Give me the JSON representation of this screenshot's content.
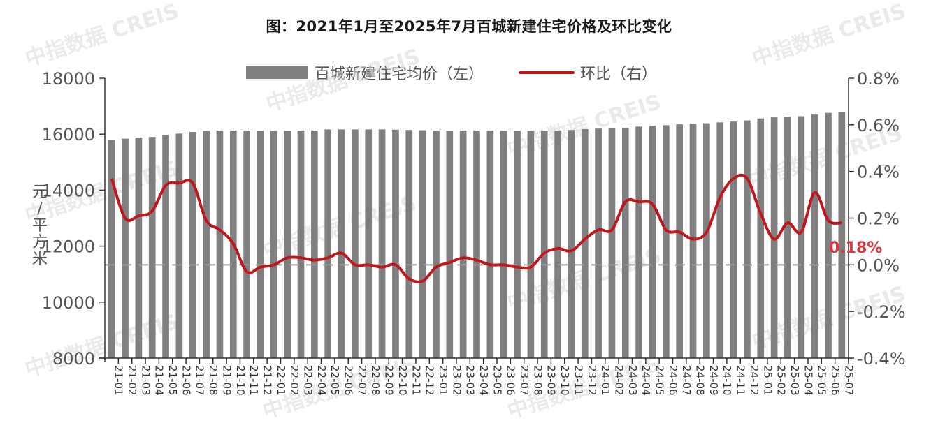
{
  "chart_data": {
    "type": "bar+line",
    "title": "图：2021年1月至2025年7月百城新建住宅价格及环比变化",
    "ylabel_left": "元/平方米",
    "ylabel_right": "",
    "xlabel": "",
    "ylim_left": [
      8000,
      18000
    ],
    "ylim_right": [
      -0.4,
      0.8
    ],
    "left_ticks": [
      "18000",
      "16000",
      "14000",
      "12000",
      "10000",
      "8000"
    ],
    "right_ticks": [
      "0.8%",
      "0.6%",
      "0.4%",
      "0.2%",
      "0.0%",
      "-0.2%",
      "-0.4%"
    ],
    "legend": [
      "百城新建住宅均价（左）",
      "环比（右）"
    ],
    "legend_position": "top",
    "annotation": "0.18%",
    "categories": [
      "21-01",
      "21-02",
      "21-03",
      "21-04",
      "21-05",
      "21-06",
      "21-07",
      "21-08",
      "21-09",
      "21-10",
      "21-11",
      "21-12",
      "22-01",
      "22-02",
      "22-03",
      "22-04",
      "22-05",
      "22-06",
      "22-07",
      "22-08",
      "22-09",
      "22-10",
      "22-11",
      "22-12",
      "23-01",
      "23-02",
      "23-03",
      "23-04",
      "23-05",
      "23-06",
      "23-07",
      "23-08",
      "23-09",
      "23-10",
      "23-11",
      "23-12",
      "24-01",
      "24-02",
      "24-03",
      "24-04",
      "24-05",
      "24-06",
      "24-07",
      "24-08",
      "24-09",
      "24-10",
      "24-11",
      "24-12",
      "25-01",
      "25-02",
      "25-03",
      "25-04",
      "25-05",
      "25-06",
      "25-07"
    ],
    "series": [
      {
        "name": "百城新建住宅均价（左）",
        "type": "bar",
        "axis": "left",
        "color": "#7f7f7f",
        "values": [
          15800,
          15840,
          15880,
          15900,
          15960,
          16020,
          16080,
          16120,
          16130,
          16130,
          16130,
          16120,
          16120,
          16120,
          16130,
          16130,
          16170,
          16170,
          16170,
          16170,
          16170,
          16160,
          16150,
          16140,
          16130,
          16130,
          16130,
          16130,
          16130,
          16120,
          16120,
          16120,
          16120,
          16130,
          16150,
          16180,
          16200,
          16210,
          16230,
          16270,
          16300,
          16320,
          16350,
          16370,
          16390,
          16420,
          16450,
          16490,
          16560,
          16600,
          16620,
          16640,
          16700,
          16760,
          16800
        ]
      },
      {
        "name": "环比（右）",
        "type": "line",
        "axis": "right",
        "color": "#c0161c",
        "values": [
          0.37,
          0.2,
          0.21,
          0.23,
          0.34,
          0.35,
          0.35,
          0.19,
          0.15,
          0.09,
          -0.03,
          -0.01,
          0.0,
          0.03,
          0.03,
          0.02,
          0.03,
          0.05,
          0.0,
          0.0,
          -0.01,
          0.0,
          -0.06,
          -0.07,
          -0.01,
          0.01,
          0.03,
          0.02,
          0.0,
          0.0,
          -0.01,
          -0.01,
          0.05,
          0.07,
          0.06,
          0.11,
          0.15,
          0.15,
          0.27,
          0.27,
          0.26,
          0.15,
          0.14,
          0.11,
          0.14,
          0.29,
          0.37,
          0.37,
          0.22,
          0.11,
          0.18,
          0.14,
          0.31,
          0.19,
          0.18
        ]
      }
    ],
    "grid": false,
    "zero_line_dashed": true
  },
  "watermark": [
    "中指数据 CREIS"
  ]
}
